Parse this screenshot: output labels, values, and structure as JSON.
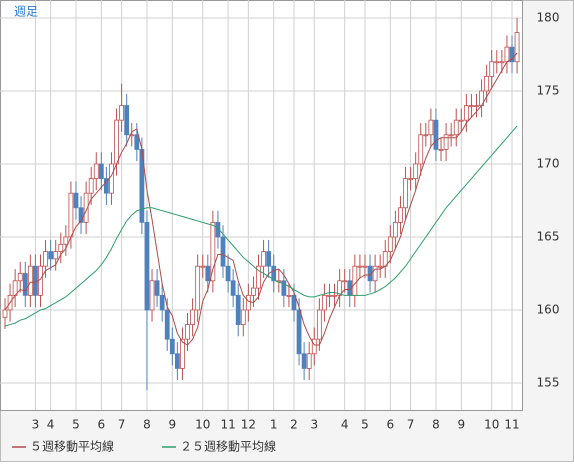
{
  "chart_data": {
    "type": "candlestick",
    "title": "週足",
    "categories": [
      null,
      null,
      null,
      null,
      null,
      null,
      "3",
      null,
      null,
      "4",
      null,
      null,
      null,
      null,
      "5",
      null,
      null,
      null,
      null,
      "6",
      null,
      null,
      null,
      "7",
      null,
      null,
      null,
      null,
      "8",
      null,
      null,
      null,
      null,
      "9",
      null,
      null,
      null,
      null,
      null,
      "10",
      null,
      null,
      null,
      null,
      "11",
      null,
      null,
      null,
      "12",
      null,
      null,
      null,
      null,
      "1",
      null,
      null,
      null,
      "2",
      null,
      null,
      null,
      "3",
      null,
      null,
      null,
      null,
      null,
      "4",
      null,
      null,
      null,
      "5",
      null,
      null,
      null,
      null,
      "6",
      null,
      null,
      null,
      "7",
      null,
      null,
      null,
      null,
      "8",
      null,
      null,
      null,
      null,
      "9",
      null,
      null,
      null,
      null,
      null,
      "10",
      null,
      null,
      null,
      "11",
      null
    ],
    "open": [
      159.5,
      160,
      161,
      162,
      162.5,
      161,
      163,
      161,
      163,
      164,
      163.5,
      164,
      164.5,
      165,
      168,
      167,
      166,
      168,
      169,
      170,
      169,
      168,
      170,
      173,
      174,
      172,
      172,
      171,
      166,
      160,
      162,
      161,
      160,
      158,
      157,
      156,
      158,
      159,
      160,
      163,
      163,
      162,
      166,
      165,
      163,
      162,
      161,
      159,
      160,
      161,
      161.5,
      163,
      164,
      163,
      162,
      162,
      161,
      161,
      160,
      157,
      156,
      157,
      158,
      160,
      161,
      161,
      161,
      162,
      162,
      161,
      163,
      163,
      163,
      162,
      163,
      163,
      164,
      165,
      166,
      167,
      169,
      169,
      170,
      172,
      172,
      173,
      171,
      171,
      172,
      172,
      173,
      173,
      174,
      174,
      174,
      175,
      176,
      177,
      177,
      177,
      178,
      177
    ],
    "high": [
      160.8,
      161.8,
      162.8,
      163.3,
      163.3,
      163.8,
      163.8,
      163.8,
      164.8,
      164.8,
      164.8,
      165.3,
      165.8,
      168.8,
      168.8,
      167.8,
      168.8,
      169.8,
      170.8,
      170.8,
      169.8,
      170.8,
      173.8,
      175.5,
      174.8,
      172.8,
      172.8,
      171.8,
      166.8,
      162.8,
      162.8,
      161.8,
      160.8,
      158.8,
      157.8,
      158.8,
      159.8,
      160.8,
      163.8,
      163.8,
      163.8,
      166.8,
      166.8,
      165.8,
      163.8,
      162.8,
      161.8,
      160.8,
      161.8,
      162.3,
      163.8,
      164.8,
      164.8,
      163.8,
      162.8,
      162.8,
      161.8,
      161.8,
      160.8,
      157.8,
      157.8,
      158.8,
      160.8,
      161.8,
      161.8,
      161.8,
      162.8,
      162.8,
      162.8,
      163.8,
      163.8,
      163.8,
      163.8,
      163.8,
      163.8,
      164.8,
      165.8,
      166.8,
      167.8,
      169.8,
      169.8,
      170.8,
      172.8,
      172.8,
      173.8,
      173.8,
      171.8,
      172.8,
      172.8,
      173.8,
      173.8,
      174.8,
      174.8,
      174.8,
      175.8,
      176.8,
      177.8,
      177.8,
      177.8,
      178.8,
      178.8,
      180
    ],
    "low": [
      158.7,
      159.2,
      160.2,
      161.2,
      160.2,
      160.2,
      160.2,
      160.2,
      162.2,
      162.7,
      162.7,
      163.2,
      163.7,
      164.2,
      166.2,
      165.2,
      165.2,
      167.2,
      168.2,
      168.2,
      167.2,
      167.2,
      169.2,
      172.2,
      171.2,
      171.2,
      170.2,
      165.2,
      154.5,
      159.2,
      160.2,
      159.2,
      157.2,
      156.2,
      155.2,
      155.2,
      157.2,
      158.2,
      159.2,
      162.2,
      161.2,
      161.2,
      164.2,
      162.2,
      161.2,
      160.2,
      158.2,
      158.2,
      159.2,
      160.2,
      160.7,
      162.2,
      162.2,
      161.2,
      161.2,
      160.2,
      160.2,
      159.2,
      156.2,
      155.2,
      155.2,
      156.2,
      157.2,
      159.2,
      160.2,
      160.2,
      160.2,
      161.2,
      160.2,
      160.2,
      162.2,
      162.2,
      161.2,
      161.2,
      162.2,
      162.2,
      163.2,
      164.2,
      165.2,
      166.2,
      168.2,
      168.2,
      169.2,
      171.2,
      171.2,
      170.2,
      170.2,
      170.2,
      171.2,
      171.2,
      172.2,
      172.2,
      173.2,
      173.2,
      173.2,
      174.2,
      175.2,
      176.2,
      176.2,
      176.2,
      176.2,
      176.2
    ],
    "close": [
      160,
      161,
      162,
      162.5,
      161,
      163,
      161,
      163,
      164,
      163.5,
      164,
      164.5,
      165,
      168,
      167,
      166,
      168,
      169,
      170,
      169,
      168,
      170,
      173,
      174,
      172,
      172,
      171,
      166,
      160,
      162,
      161,
      160,
      158,
      157,
      156,
      158,
      159,
      160,
      163,
      163,
      162,
      166,
      165,
      163,
      162,
      161,
      159,
      160,
      161,
      161.5,
      163,
      164,
      163,
      162,
      162,
      161,
      161,
      160,
      157,
      156,
      157,
      158,
      160,
      161,
      161,
      161,
      162,
      162,
      161,
      163,
      163,
      163,
      162,
      163,
      163,
      164,
      165,
      166,
      167,
      169,
      169,
      170,
      172,
      172,
      173,
      171,
      171,
      172,
      172,
      173,
      173,
      174,
      174,
      174,
      175,
      176,
      177,
      177,
      177,
      178,
      177,
      179
    ],
    "up_color": "#c0504d",
    "down_color": "#4f81bd",
    "series": [
      {
        "name": "５週移動平均線",
        "color": "#b04a4a",
        "values": [
          160,
          160.5,
          161,
          161.4,
          161.3,
          161.9,
          161.9,
          162.1,
          162.7,
          162.9,
          163.1,
          163.8,
          164.2,
          165,
          165.7,
          166.1,
          166.8,
          167.6,
          168,
          168.4,
          168.8,
          169.2,
          170,
          170.8,
          171.4,
          172.2,
          172.4,
          171,
          168.2,
          166.2,
          164,
          161.8,
          160.2,
          159.6,
          158.4,
          157.8,
          157.6,
          158,
          158.8,
          160.6,
          161.4,
          162.8,
          163.8,
          163.8,
          163.6,
          163.4,
          162,
          161,
          160.6,
          160.5,
          160.9,
          161.9,
          162.5,
          162.7,
          162.8,
          162.4,
          161.8,
          161.2,
          160.2,
          159,
          158.2,
          157.6,
          157.6,
          158.4,
          159.4,
          160.2,
          161,
          161.4,
          161.4,
          161.8,
          162.2,
          162.4,
          162.4,
          162.8,
          162.8,
          163,
          163.4,
          164.2,
          165,
          166.2,
          167.2,
          168.2,
          169.4,
          170.4,
          171.2,
          171.6,
          171.8,
          171.8,
          171.8,
          171.8,
          172.2,
          172.8,
          173.2,
          173.6,
          174,
          174.6,
          175.2,
          175.8,
          176.4,
          177,
          177.2,
          177.6
        ]
      },
      {
        "name": "２５週移動平均線",
        "color": "#2e9e6e",
        "values": [
          158.9,
          159,
          159.1,
          159.3,
          159.4,
          159.6,
          159.8,
          160,
          160.1,
          160.3,
          160.5,
          160.7,
          160.9,
          161.2,
          161.5,
          161.8,
          162.1,
          162.4,
          162.7,
          163.1,
          163.6,
          164.2,
          164.9,
          165.5,
          166.1,
          166.5,
          166.8,
          166.9,
          167,
          167,
          166.9,
          166.8,
          166.7,
          166.6,
          166.5,
          166.4,
          166.3,
          166.2,
          166.1,
          166,
          165.9,
          165.8,
          165.6,
          165.2,
          164.8,
          164.4,
          164,
          163.6,
          163.3,
          163,
          162.7,
          162.5,
          162.3,
          162.1,
          161.9,
          161.8,
          161.6,
          161.4,
          161.2,
          161,
          160.9,
          160.9,
          161,
          161.1,
          161.2,
          161.2,
          161.1,
          161,
          161,
          161,
          161,
          161,
          161.1,
          161.2,
          161.4,
          161.6,
          161.9,
          162.2,
          162.6,
          163,
          163.5,
          164,
          164.5,
          165,
          165.5,
          166,
          166.5,
          167,
          167.4,
          167.8,
          168.2,
          168.6,
          169,
          169.4,
          169.8,
          170.2,
          170.6,
          171,
          171.4,
          171.8,
          172.2,
          172.6
        ]
      }
    ],
    "ylim": [
      153.15,
      181.23
    ],
    "yticks": [
      155,
      160,
      165,
      170,
      175,
      180
    ],
    "grid": true
  }
}
